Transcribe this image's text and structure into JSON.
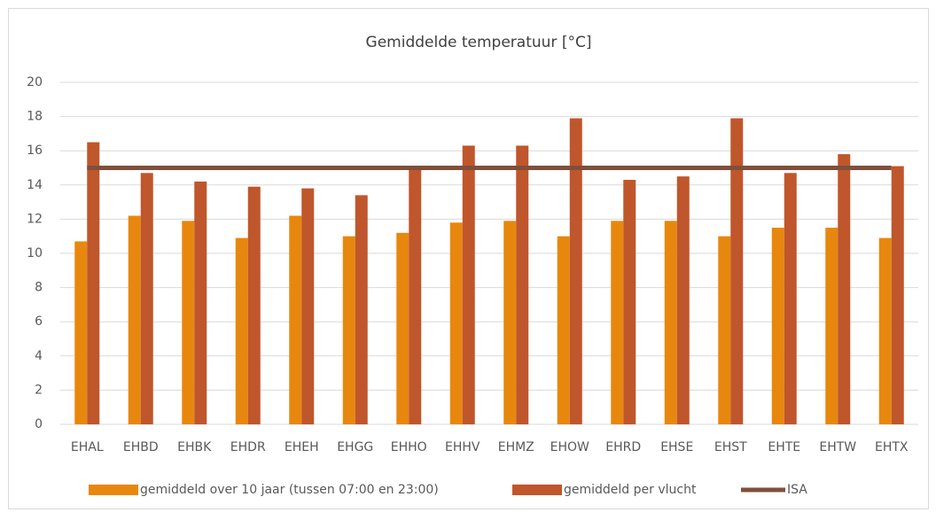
{
  "chart_data": {
    "type": "bar",
    "title": "Gemiddelde temperatuur [°C]",
    "categories": [
      "EHAL",
      "EHBD",
      "EHBK",
      "EHDR",
      "EHEH",
      "EHGG",
      "EHHO",
      "EHHV",
      "EHMZ",
      "EHOW",
      "EHRD",
      "EHSE",
      "EHST",
      "EHTE",
      "EHTW",
      "EHTX"
    ],
    "series": [
      {
        "name": "gemiddeld over 10 jaar (tussen 07:00 en 23:00)",
        "color": "#e8870e",
        "values": [
          10.7,
          12.2,
          11.9,
          10.9,
          12.2,
          11.0,
          11.2,
          11.8,
          11.9,
          11.0,
          11.9,
          11.9,
          11.0,
          11.5,
          11.5,
          10.9
        ]
      },
      {
        "name": "gemiddeld per vlucht",
        "color": "#c0562b",
        "values": [
          16.5,
          14.7,
          14.2,
          13.9,
          13.8,
          13.4,
          15.0,
          16.3,
          16.3,
          17.9,
          14.3,
          14.5,
          17.9,
          14.7,
          15.8,
          15.1
        ]
      },
      {
        "name": "ISA",
        "type": "line",
        "color": "#7f4f3b",
        "values": [
          15,
          15,
          15,
          15,
          15,
          15,
          15,
          15,
          15,
          15,
          15,
          15,
          15,
          15,
          15,
          15
        ]
      }
    ],
    "ylim": [
      0,
      20
    ],
    "yticks": [
      0,
      2,
      4,
      6,
      8,
      10,
      12,
      14,
      16,
      18,
      20
    ],
    "grid": true,
    "legend": "bottom"
  }
}
